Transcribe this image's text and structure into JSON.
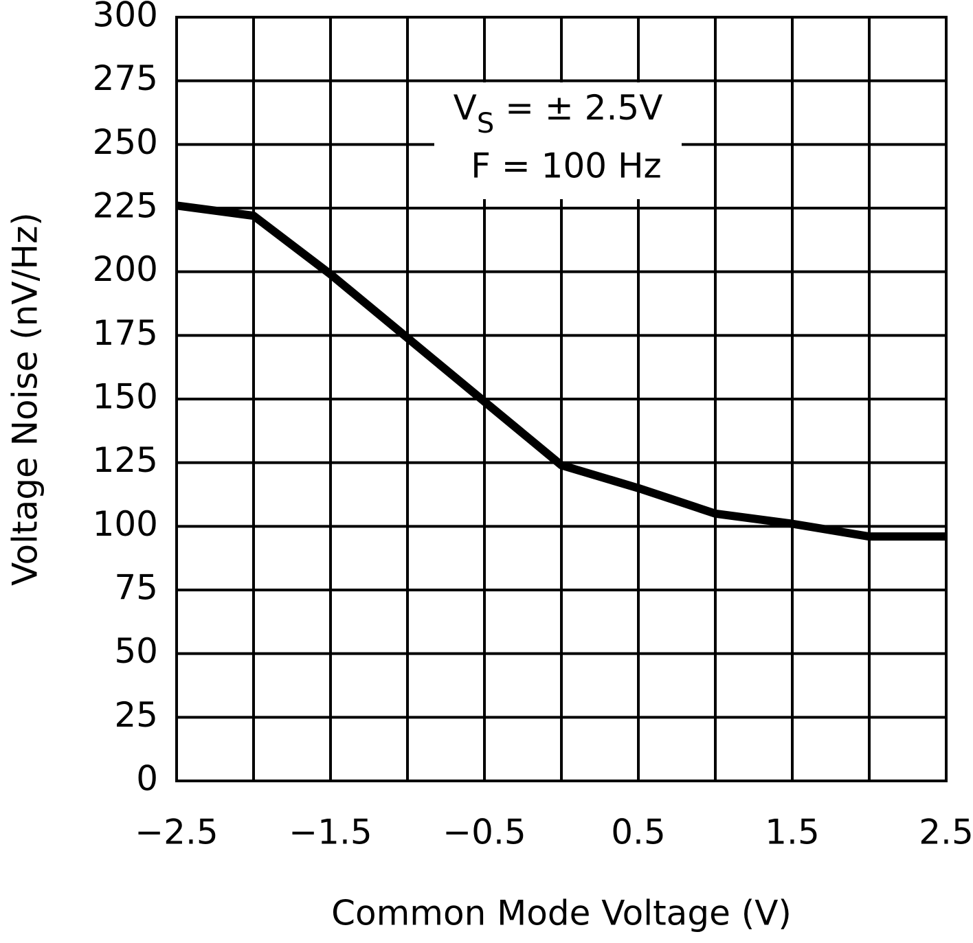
{
  "chart_data": {
    "type": "line",
    "x_label": "Common Mode Voltage (V)",
    "y_label": "Voltage Noise (nV/Hz)",
    "annotation": {
      "symbol": "V",
      "subscript": "S",
      "condition": " = ± 2.5V",
      "frequency": "F = 100 Hz"
    },
    "x": [
      -2.5,
      -2,
      -1.5,
      -1,
      -0.5,
      0,
      0.5,
      1,
      1.5,
      2,
      2.5
    ],
    "series": [
      {
        "color": "#000000",
        "values": [
          226,
          222,
          199,
          174,
          149,
          124,
          115,
          105,
          101,
          96,
          96
        ]
      }
    ],
    "xlim": [
      -2.5,
      2.5
    ],
    "xticks": [
      {
        "value": -2.5,
        "label": "−2.5"
      },
      {
        "value": -1.5,
        "label": "−1.5"
      },
      {
        "value": -0.5,
        "label": "−0.5"
      },
      0.5,
      1.5,
      2.5
    ],
    "xminor_ticks": [
      -2,
      -1,
      0,
      1,
      2
    ],
    "ylim": [
      0,
      300
    ],
    "yticks": [
      0,
      25,
      50,
      75,
      100,
      125,
      150,
      175,
      200,
      225,
      250,
      275,
      300
    ],
    "grid": true
  }
}
